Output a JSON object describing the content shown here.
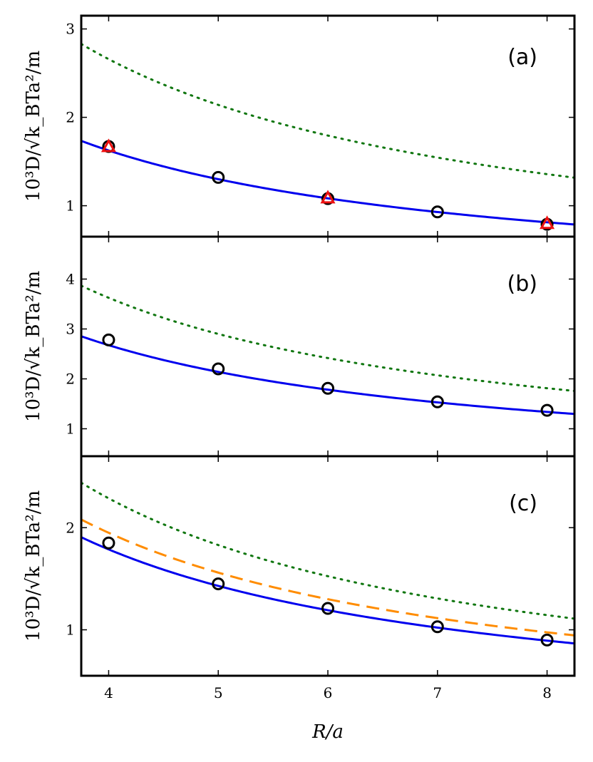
{
  "chart_data": [
    {
      "type": "line",
      "panel_label": "(a)",
      "xlabel": "",
      "ylabel": "10³D/√k_BTa²/m",
      "xlim": [
        3.75,
        8.25
      ],
      "ylim": [
        0.65,
        3.15
      ],
      "yticks": [
        1,
        2,
        3
      ],
      "xticks": [
        4,
        5,
        6,
        7,
        8
      ],
      "xtick_labels_shown": false,
      "grid": false,
      "curves": [
        {
          "style": "solid",
          "color": "#0000ee",
          "coef": 6.5,
          "pow": 1
        },
        {
          "style": "dotted",
          "color": "#117711",
          "coef": 10.2,
          "pow": 0.97
        }
      ],
      "markers": [
        {
          "shape": "circle",
          "color": "#000000",
          "x": [
            4,
            5,
            6,
            7,
            8
          ],
          "y": [
            1.67,
            1.32,
            1.08,
            0.93,
            0.79
          ]
        },
        {
          "shape": "triangle",
          "color": "#ee1111",
          "x": [
            4,
            6,
            8
          ],
          "y": [
            1.67,
            1.09,
            0.8
          ]
        }
      ]
    },
    {
      "type": "line",
      "panel_label": "(b)",
      "xlabel": "",
      "ylabel": "10³D/√k_BTa²/m",
      "xlim": [
        3.75,
        8.25
      ],
      "ylim": [
        0.45,
        4.85
      ],
      "yticks": [
        1,
        2,
        3,
        4
      ],
      "xticks": [
        4,
        5,
        6,
        7,
        8
      ],
      "xtick_labels_shown": false,
      "grid": false,
      "curves": [
        {
          "style": "solid",
          "color": "#0000ee",
          "coef": 10.7,
          "pow": 1
        },
        {
          "style": "dotted",
          "color": "#117711",
          "coef": 14.5,
          "pow": 1
        }
      ],
      "markers": [
        {
          "shape": "circle",
          "color": "#000000",
          "x": [
            4,
            5,
            6,
            7,
            8
          ],
          "y": [
            2.78,
            2.2,
            1.81,
            1.54,
            1.37
          ]
        }
      ]
    },
    {
      "type": "line",
      "panel_label": "(c)",
      "xlabel": "R/a",
      "ylabel": "10³D/√k_BTa²/m",
      "xlim": [
        3.75,
        8.25
      ],
      "ylim": [
        0.55,
        2.7
      ],
      "yticks": [
        1,
        2
      ],
      "xticks": [
        4,
        5,
        6,
        7,
        8
      ],
      "xtick_labels_shown": true,
      "grid": false,
      "curves": [
        {
          "style": "solid",
          "color": "#0000ee",
          "coef": 7.15,
          "pow": 1
        },
        {
          "style": "dashed",
          "color": "#ff8c00",
          "coef": 7.8,
          "pow": 1
        },
        {
          "style": "dotted",
          "color": "#117711",
          "coef": 9.15,
          "pow": 1
        }
      ],
      "markers": [
        {
          "shape": "circle",
          "color": "#000000",
          "x": [
            4,
            5,
            6,
            7,
            8
          ],
          "y": [
            1.85,
            1.45,
            1.21,
            1.03,
            0.9
          ]
        }
      ]
    }
  ]
}
